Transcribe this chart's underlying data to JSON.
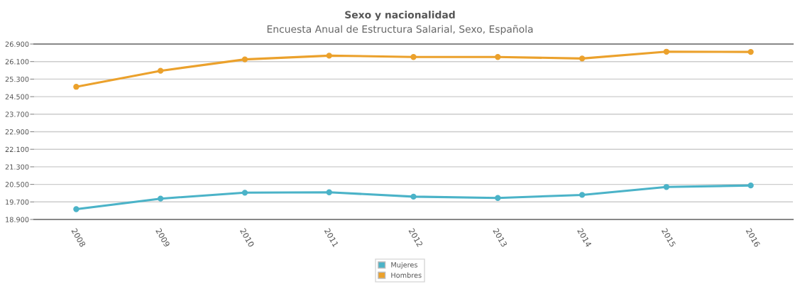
{
  "chart_data": {
    "type": "line",
    "title": "Sexo y nacionalidad",
    "subtitle": "Encuesta Anual de Estructura Salarial, Sexo, Española",
    "categories": [
      "2008",
      "2009",
      "2010",
      "2011",
      "2012",
      "2013",
      "2014",
      "2015",
      "2016"
    ],
    "series": [
      {
        "name": "Mujeres",
        "color": "#4bb3c8",
        "values": [
          19370,
          19850,
          20120,
          20140,
          19940,
          19880,
          20020,
          20380,
          20450
        ]
      },
      {
        "name": "Hombres",
        "color": "#eba12c",
        "values": [
          24950,
          25680,
          26200,
          26370,
          26310,
          26310,
          26240,
          26550,
          26540
        ]
      }
    ],
    "ylim": [
      18900,
      26900
    ],
    "yticks": [
      {
        "value": 18900,
        "label": "18.900"
      },
      {
        "value": 19700,
        "label": "19.700"
      },
      {
        "value": 20500,
        "label": "20.500"
      },
      {
        "value": 21300,
        "label": "21.300"
      },
      {
        "value": 22100,
        "label": "22.100"
      },
      {
        "value": 22900,
        "label": "22.900"
      },
      {
        "value": 23700,
        "label": "23.700"
      },
      {
        "value": 24500,
        "label": "24.500"
      },
      {
        "value": 25300,
        "label": "25.300"
      },
      {
        "value": 26100,
        "label": "26.100"
      },
      {
        "value": 26900,
        "label": "26.900"
      }
    ],
    "grid": "y",
    "legend": "bottom",
    "marker": "circle",
    "line_style": "solid"
  }
}
